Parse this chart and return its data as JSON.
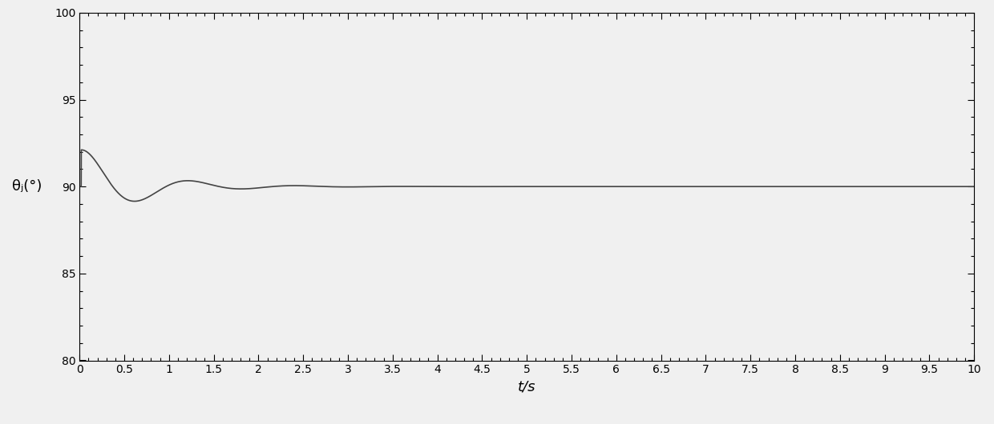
{
  "title": "",
  "xlabel": "t/s",
  "ylabel": "θⱼ(°)",
  "xlim": [
    0,
    10
  ],
  "ylim": [
    80,
    100
  ],
  "yticks": [
    80,
    85,
    90,
    95,
    100
  ],
  "xticks": [
    0,
    0.5,
    1,
    1.5,
    2,
    2.5,
    3,
    3.5,
    4,
    4.5,
    5,
    5.5,
    6,
    6.5,
    7,
    7.5,
    8,
    8.5,
    9,
    9.5,
    10
  ],
  "line_color": "#444444",
  "line_width": 1.2,
  "steady_state": 90.0,
  "peak_time": 0.25,
  "peak_value": 92.2,
  "dip_value": 89.55,
  "wn": 5.5,
  "zeta": 0.28,
  "amplitude": 2.2,
  "rise_start": 0.02,
  "figsize": [
    12.4,
    5.3
  ],
  "dpi": 100,
  "bg_color": "#f0f0f0"
}
